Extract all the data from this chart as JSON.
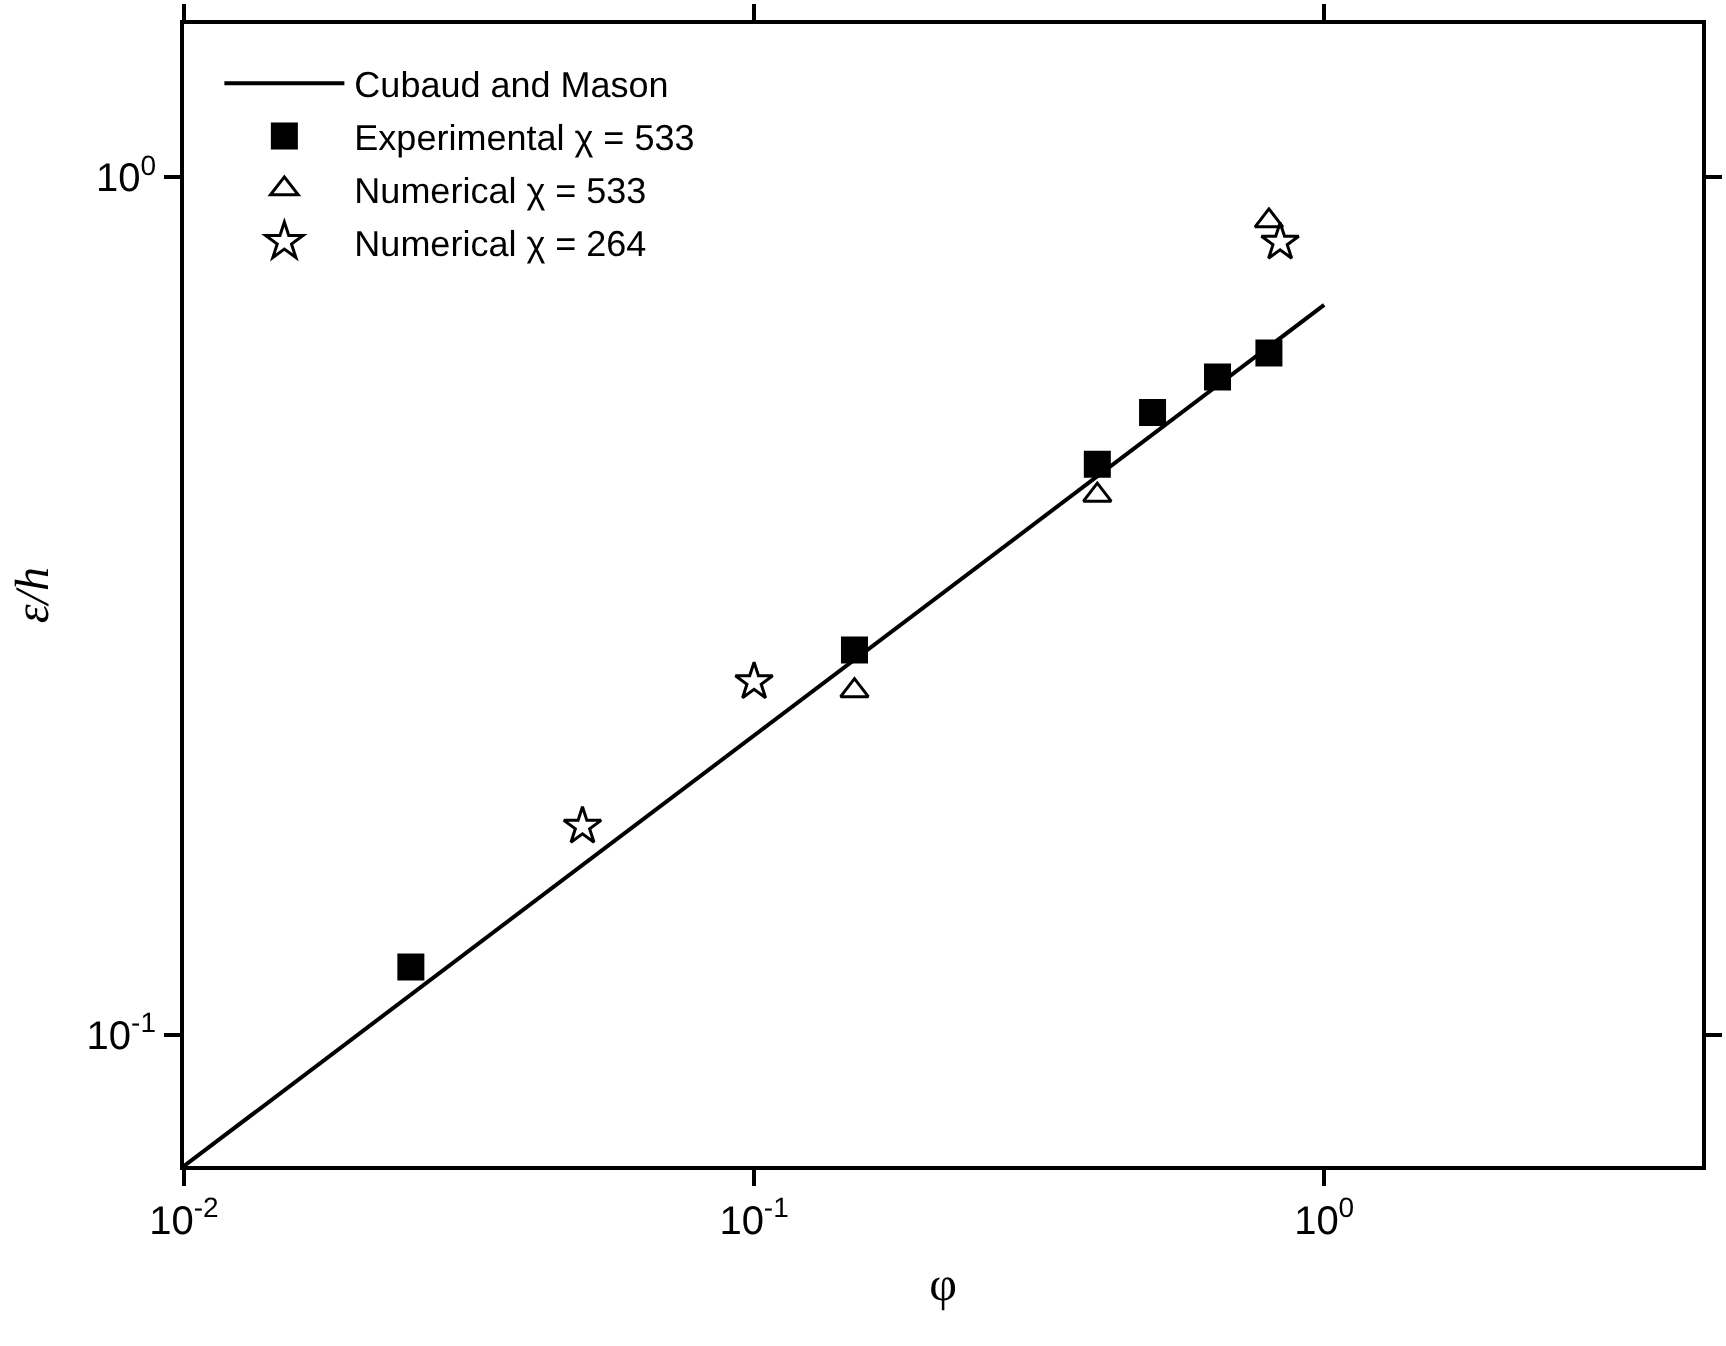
{
  "chart_data": {
    "type": "scatter",
    "xlabel": "φ",
    "ylabel": "ε/h",
    "log": "xy",
    "grid": false,
    "legend": "top left",
    "xlim": [
      0.01,
      4.6
    ],
    "ylim": [
      0.0703,
      1.51
    ],
    "xticks": [
      {
        "value": 0.01,
        "label": "10$^{-2}$"
      },
      {
        "value": 0.1,
        "label": "10$^{-1}$"
      },
      {
        "value": 1,
        "label": "10$^{0}$"
      }
    ],
    "yticks": [
      {
        "value": 0.1,
        "label": "10$^{-1}$"
      },
      {
        "value": 1,
        "label": "10$^{0}$"
      }
    ],
    "series": [
      {
        "name": "Cubaud and Mason",
        "type": "line",
        "color": "#000000",
        "marker": "none",
        "line_style": "solid",
        "x": [
          0.01,
          1
        ],
        "values": [
          0.0703,
          0.71
        ]
      },
      {
        "name": "Experimental χ = 533",
        "color": "#000000",
        "marker": "square",
        "x": [
          0.025,
          0.15,
          0.4,
          0.5,
          0.65,
          0.8
        ],
        "values": [
          0.12,
          0.281,
          0.463,
          0.532,
          0.585,
          0.624
        ]
      },
      {
        "name": "Numerical χ = 533",
        "color": "#000000",
        "marker": "triangle",
        "x": [
          0.15,
          0.4,
          0.8
        ],
        "values": [
          0.252,
          0.426,
          0.89
        ]
      },
      {
        "name": "Numerical χ = 264",
        "color": "#000000",
        "marker": "star",
        "x": [
          0.05,
          0.1,
          0.837
        ],
        "values": [
          0.175,
          0.258,
          0.84
        ]
      }
    ]
  }
}
